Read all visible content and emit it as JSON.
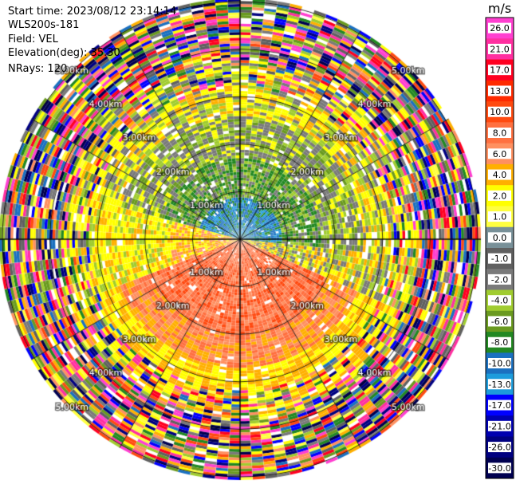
{
  "header": {
    "start_time": "Start time: 2023/08/12 23:14:14",
    "instrument": "WLS200s-181",
    "field": "Field: VEL",
    "elevation": "Elevation(deg): 35.30",
    "nrays": "NRays: 120"
  },
  "chart_data": {
    "type": "heatmap",
    "subtype": "polar-ppi",
    "range_rings_km": [
      1.0,
      2.0,
      3.0,
      4.0,
      5.0
    ],
    "range_ring_labels": [
      "1.00km",
      "2.00km",
      "3.00km",
      "4.00km",
      "5.00km"
    ],
    "nrays": 120,
    "field": "VEL",
    "colorbar": {
      "unit": "m/s",
      "ticks": [
        "26.0",
        "21.0",
        "17.0",
        "13.0",
        "10.0",
        "8.0",
        "6.0",
        "4.0",
        "2.0",
        "1.0",
        "0.0",
        "-1.0",
        "-2.0",
        "-4.0",
        "-6.0",
        "-8.0",
        "-10.0",
        "-13.0",
        "-17.0",
        "-21.0",
        "-26.0",
        "-30.0"
      ],
      "colors": [
        "#ff3fd0",
        "#ff2fa0",
        "#ff0020",
        "#ff2a00",
        "#ff4a10",
        "#ff7040",
        "#ff9060",
        "#ffb000",
        "#ffff00",
        "#ffff40",
        "#789098",
        "#606060",
        "#7a7a7a",
        "#a0cc30",
        "#6a9a20",
        "#228822",
        "#1a70c0",
        "#1c9cdc",
        "#0000ff",
        "#0000b0",
        "#000080",
        "#000050"
      ]
    }
  }
}
